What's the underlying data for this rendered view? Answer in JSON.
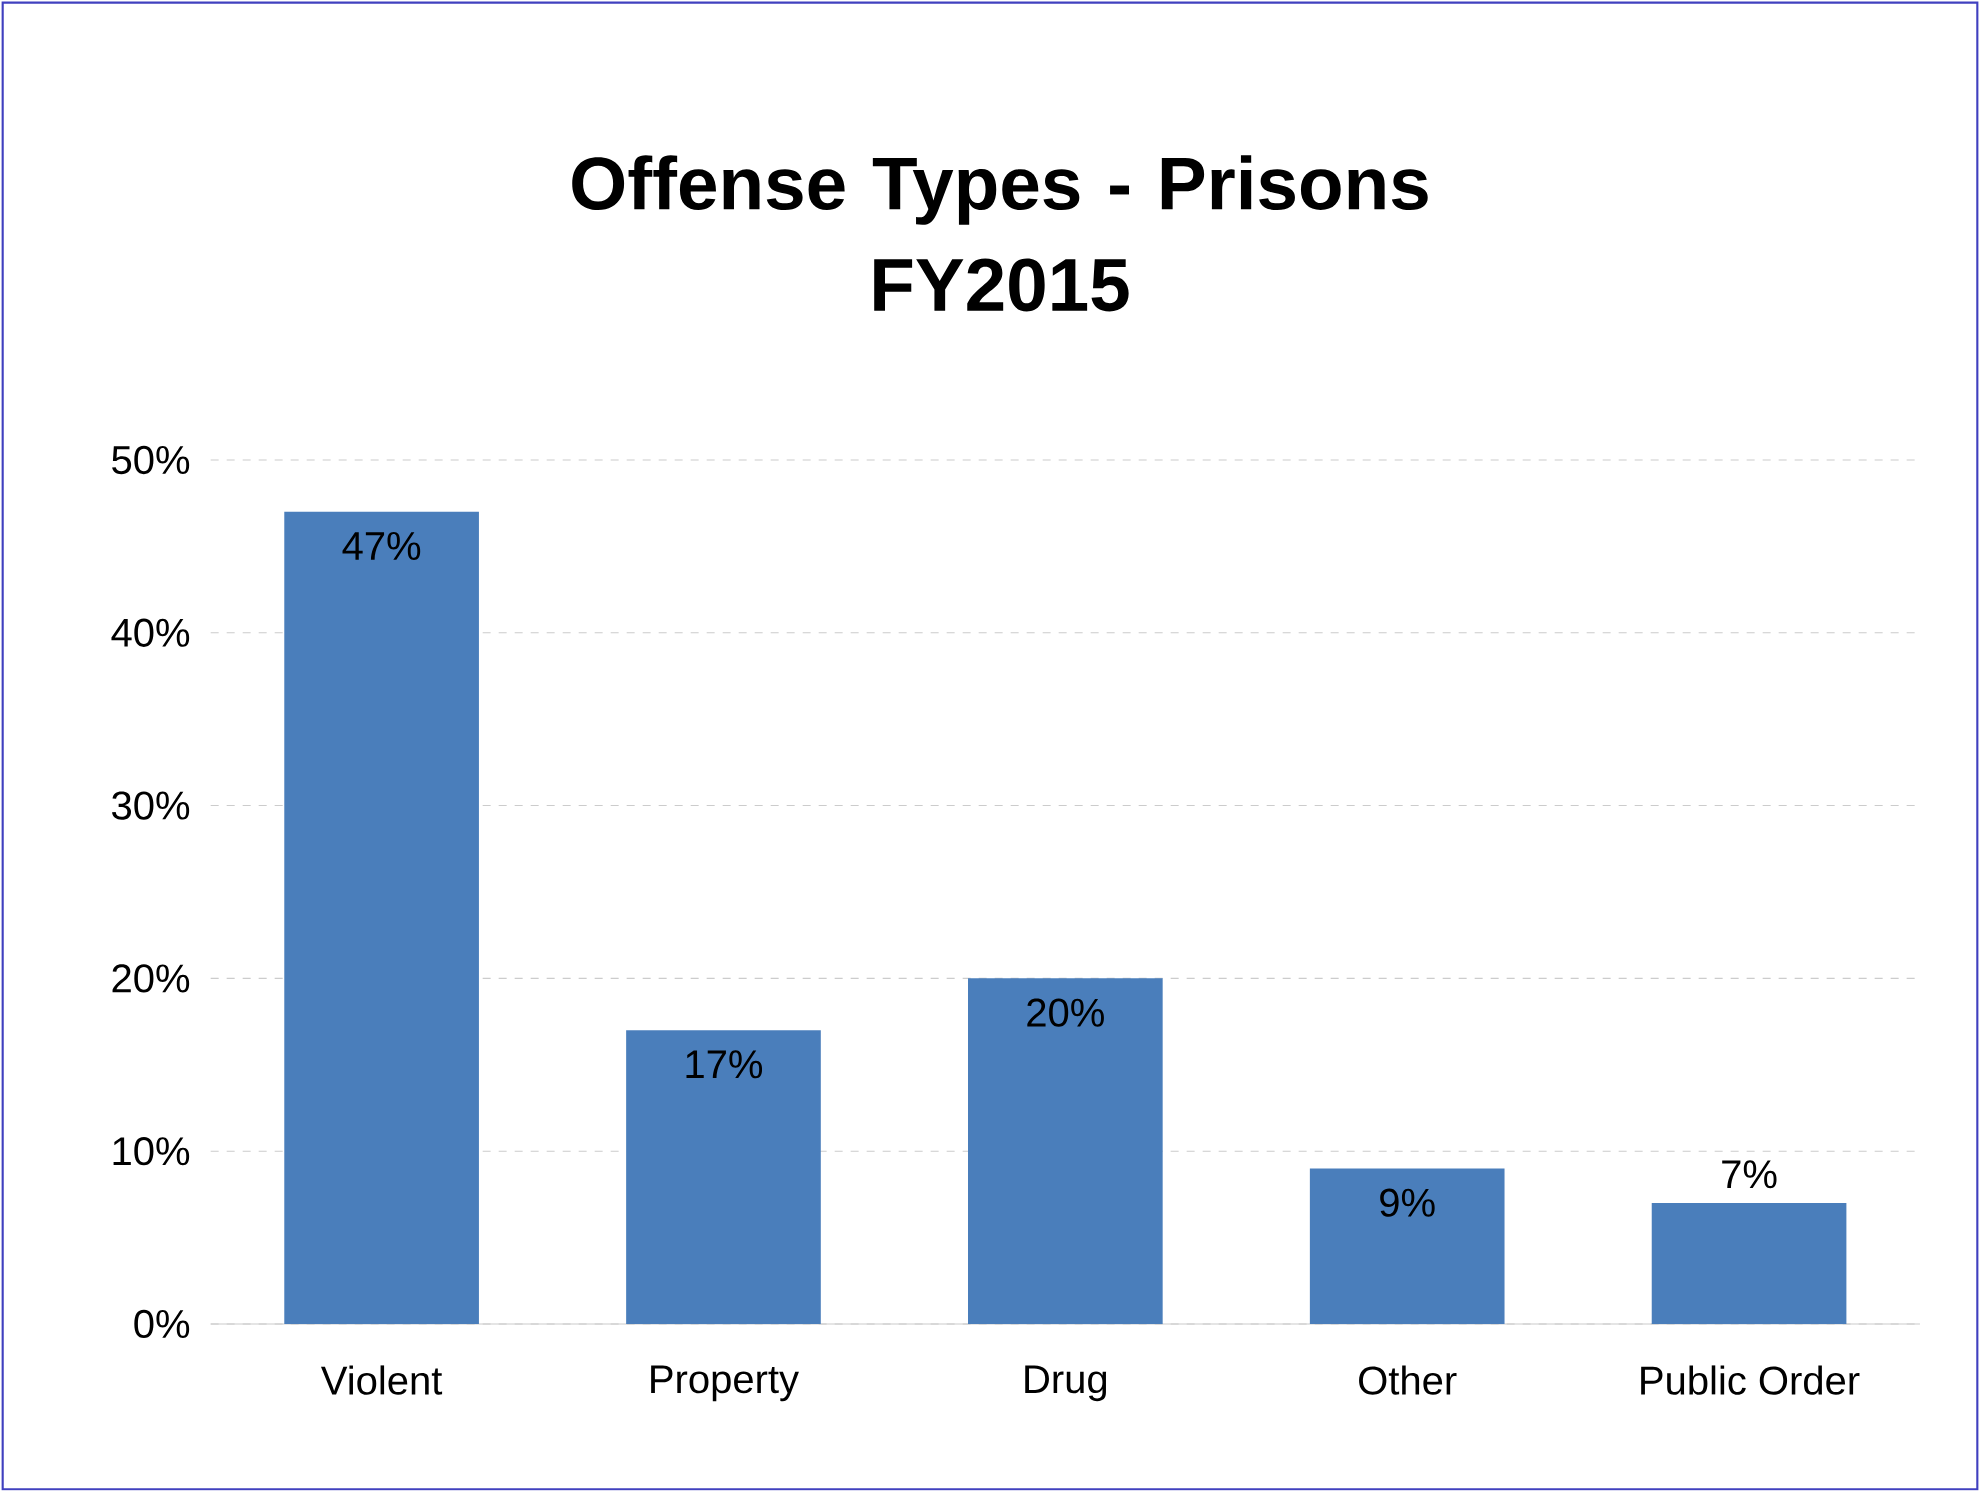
{
  "chart_data": {
    "type": "bar",
    "title": "Offense Types - Prisons\nFY2015",
    "categories": [
      "Violent",
      "Property",
      "Drug",
      "Other",
      "Public Order"
    ],
    "values": [
      47,
      17,
      20,
      9,
      7
    ],
    "value_labels": [
      "47%",
      "17%",
      "20%",
      "9%",
      "7%"
    ],
    "color": "#4a7ebb",
    "ylim": [
      0,
      50
    ],
    "yticks": [
      {
        "value": 0,
        "label": "0%"
      },
      {
        "value": 10,
        "label": "10%"
      },
      {
        "value": 20,
        "label": "20%"
      },
      {
        "value": 30,
        "label": "30%"
      },
      {
        "value": 40,
        "label": "40%"
      },
      {
        "value": 50,
        "label": "50%"
      }
    ],
    "grid": "y"
  }
}
